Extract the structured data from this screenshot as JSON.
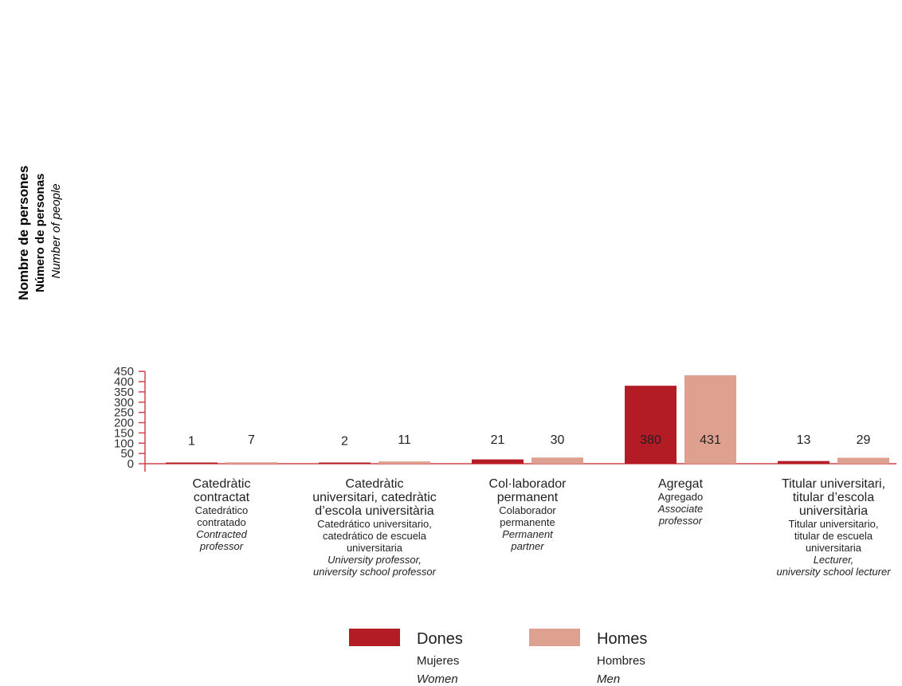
{
  "chart_data": {
    "type": "bar",
    "ylabel": [
      "Nombre de persones",
      "Número de personas",
      "Number of people"
    ],
    "ylim": [
      0,
      450
    ],
    "yticks": [
      0,
      50,
      100,
      150,
      200,
      250,
      300,
      350,
      400,
      450
    ],
    "grid": false,
    "legend_position": "bottom-center",
    "categories": [
      {
        "ca": [
          "Catedràtic",
          "contractat"
        ],
        "es": [
          "Catedrático",
          "contratado"
        ],
        "en": [
          "Contracted",
          "professor"
        ]
      },
      {
        "ca": [
          "Catedràtic",
          "universitari, catedràtic",
          "d’escola universitària"
        ],
        "es": [
          "Catedrático universitario,",
          "catedrático de escuela",
          "universitaria"
        ],
        "en": [
          "University professor,",
          "university school professor"
        ]
      },
      {
        "ca": [
          "Col·laborador",
          "permanent"
        ],
        "es": [
          "Colaborador",
          "permanente"
        ],
        "en": [
          "Permanent",
          "partner"
        ]
      },
      {
        "ca": [
          "Agregat"
        ],
        "es": [
          "Agregado"
        ],
        "en": [
          "Associate",
          "professor"
        ]
      },
      {
        "ca": [
          "Titular universitari,",
          "titular d’escola",
          "universitària"
        ],
        "es": [
          "Titular universitario,",
          "titular de escuela",
          "universitaria"
        ],
        "en": [
          "Lecturer,",
          "university school lecturer"
        ]
      }
    ],
    "series": [
      {
        "name": [
          "Dones",
          "Mujeres",
          "Women"
        ],
        "color": "#b31b25",
        "values": [
          1,
          2,
          21,
          380,
          13
        ]
      },
      {
        "name": [
          "Homes",
          "Hombres",
          "Men"
        ],
        "color": "#dea190",
        "values": [
          7,
          11,
          30,
          431,
          29
        ]
      }
    ]
  },
  "colors": {
    "axis": "#d4424c",
    "tick_text": "#333333",
    "text": "#231f20"
  }
}
